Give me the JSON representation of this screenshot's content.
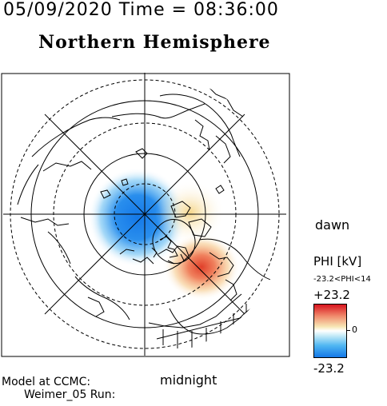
{
  "header": {
    "date_time": "05/09/2020 Time = 08:36:00",
    "title": "Northern Hemisphere"
  },
  "map": {
    "dawn_label": "dawn",
    "midnight_label": "midnight"
  },
  "model": {
    "line1": "Model at CCMC:",
    "line2": "Weimer_05 Run:"
  },
  "legend": {
    "title": "PHI [kV]",
    "range": "-23.2<PHI<14",
    "max_label": "+23.2",
    "zero_label": "0",
    "min_label": "-23.2",
    "colors": {
      "max": "#d8141e",
      "zero": "#ffffff",
      "min": "#1478e8"
    }
  }
}
